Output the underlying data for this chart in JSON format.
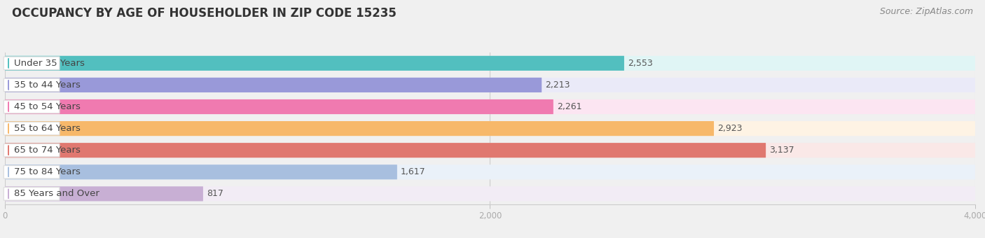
{
  "title": "OCCUPANCY BY AGE OF HOUSEHOLDER IN ZIP CODE 15235",
  "source": "Source: ZipAtlas.com",
  "categories": [
    "Under 35 Years",
    "35 to 44 Years",
    "45 to 54 Years",
    "55 to 64 Years",
    "65 to 74 Years",
    "75 to 84 Years",
    "85 Years and Over"
  ],
  "values": [
    2553,
    2213,
    2261,
    2923,
    3137,
    1617,
    817
  ],
  "bar_colors": [
    "#52bfbf",
    "#9999d9",
    "#f07ab0",
    "#f7b86a",
    "#e07870",
    "#a8bfdf",
    "#c8afd4"
  ],
  "bar_bg_colors": [
    "#e0f5f5",
    "#eaeaf8",
    "#fce5f2",
    "#fef3e4",
    "#fae8e7",
    "#eaf1f9",
    "#f2ecf5"
  ],
  "dot_colors": [
    "#52bfbf",
    "#9999d9",
    "#f07ab0",
    "#f7b86a",
    "#e07870",
    "#a8bfdf",
    "#c8afd4"
  ],
  "xlim": [
    0,
    4000
  ],
  "xticks": [
    0,
    2000,
    4000
  ],
  "background_color": "#f0f0f0",
  "row_bg_color": "#f8f8f8",
  "title_fontsize": 12,
  "label_fontsize": 9.5,
  "value_fontsize": 9,
  "source_fontsize": 9
}
